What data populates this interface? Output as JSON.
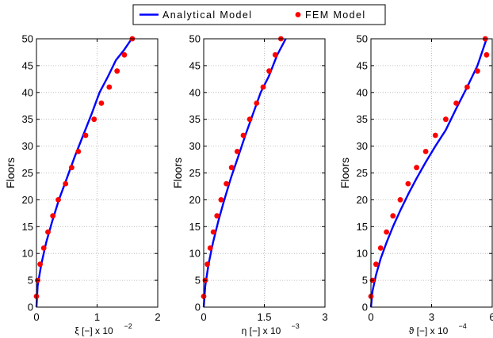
{
  "legend": {
    "entries": [
      {
        "label": "Analytical Model",
        "marker": "line",
        "color": "#0000ff"
      },
      {
        "label": "FEM Model",
        "marker": "dot",
        "color": "#ff0000"
      }
    ]
  },
  "chart_data": [
    {
      "type": "line",
      "ylabel": "Floors",
      "xlabel": "ξ [−] x 10",
      "xlabel_exponent": "−2",
      "xlim": [
        0,
        2
      ],
      "ylim": [
        0,
        50
      ],
      "xticks": [
        "0",
        "1",
        "2"
      ],
      "xtick_values": [
        0,
        1,
        2
      ],
      "yticks": [
        "0",
        "5",
        "10",
        "15",
        "20",
        "25",
        "30",
        "35",
        "40",
        "45",
        "50"
      ],
      "grid": true,
      "series": [
        {
          "name": "Analytical Model",
          "color": "#0000ff",
          "x": [
            0,
            0.02,
            0.08,
            0.16,
            0.26,
            0.37,
            0.5,
            0.63,
            0.77,
            0.91,
            1.04,
            1.18,
            1.31,
            1.45,
            1.57
          ],
          "y": [
            0,
            4,
            8,
            12,
            16,
            20,
            24,
            28,
            32,
            36,
            40,
            43,
            46,
            48,
            50
          ]
        },
        {
          "name": "FEM Model",
          "color": "#ff0000",
          "x": [
            0.0,
            0.02,
            0.06,
            0.12,
            0.19,
            0.27,
            0.36,
            0.48,
            0.58,
            0.69,
            0.81,
            0.95,
            1.07,
            1.2,
            1.33,
            1.45,
            1.58
          ],
          "y": [
            2,
            5,
            8,
            11,
            14,
            17,
            20,
            23,
            26,
            29,
            32,
            35,
            38,
            41,
            44,
            47,
            50
          ]
        }
      ]
    },
    {
      "type": "line",
      "ylabel": "Floors",
      "xlabel": "η [−] x 10",
      "xlabel_exponent": "−3",
      "xlim": [
        0,
        3
      ],
      "ylim": [
        0,
        50
      ],
      "xticks": [
        "0",
        "1.5",
        "3"
      ],
      "xtick_values": [
        0,
        1.5,
        3
      ],
      "yticks": [
        "0",
        "5",
        "10",
        "15",
        "20",
        "25",
        "30",
        "35",
        "40",
        "45",
        "50"
      ],
      "grid": true,
      "series": [
        {
          "name": "Analytical Model",
          "color": "#0000ff",
          "x": [
            0,
            0.04,
            0.12,
            0.23,
            0.36,
            0.51,
            0.67,
            0.85,
            1.03,
            1.22,
            1.41,
            1.61,
            1.82,
            2.03
          ],
          "y": [
            0,
            4,
            8,
            12,
            16,
            20,
            24,
            28,
            32,
            36,
            40,
            43,
            47,
            50
          ]
        },
        {
          "name": "FEM Model",
          "color": "#ff0000",
          "x": [
            0.0,
            0.04,
            0.09,
            0.16,
            0.24,
            0.33,
            0.43,
            0.56,
            0.69,
            0.83,
            0.98,
            1.14,
            1.31,
            1.47,
            1.62,
            1.77,
            1.91
          ],
          "y": [
            2,
            5,
            8,
            11,
            14,
            17,
            20,
            23,
            26,
            29,
            32,
            35,
            38,
            41,
            44,
            47,
            50
          ]
        }
      ]
    },
    {
      "type": "line",
      "ylabel": "Floors",
      "xlabel": "ϑ [−] x 10",
      "xlabel_exponent": "−4",
      "xlim": [
        0,
        6
      ],
      "ylim": [
        0,
        50
      ],
      "xticks": [
        "0",
        "3",
        "6"
      ],
      "xtick_values": [
        0,
        3,
        6
      ],
      "yticks": [
        "0",
        "5",
        "10",
        "15",
        "20",
        "25",
        "30",
        "35",
        "40",
        "45",
        "50"
      ],
      "grid": true,
      "series": [
        {
          "name": "Analytical Model",
          "color": "#0000ff",
          "x": [
            0,
            0.08,
            0.25,
            0.48,
            0.77,
            1.09,
            1.45,
            1.84,
            2.26,
            2.71,
            3.19,
            3.7,
            4.22,
            4.76,
            5.27,
            5.72
          ],
          "y": [
            0,
            3,
            6,
            9,
            12,
            15,
            18,
            21,
            24,
            27,
            30,
            33,
            37,
            41,
            45,
            50
          ]
        },
        {
          "name": "FEM Model",
          "color": "#ff0000",
          "x": [
            0.0,
            0.08,
            0.25,
            0.48,
            0.77,
            1.09,
            1.45,
            1.84,
            2.26,
            2.71,
            3.19,
            3.7,
            4.22,
            4.76,
            5.27,
            5.72
          ],
          "y": [
            2,
            5,
            8,
            11,
            14,
            17,
            20,
            23,
            26,
            29,
            32,
            35,
            38,
            41,
            44,
            47
          ]
        },
        {
          "name": "FEM Model top",
          "color": "#ff0000",
          "x": [
            5.66
          ],
          "y": [
            50
          ]
        }
      ]
    }
  ]
}
